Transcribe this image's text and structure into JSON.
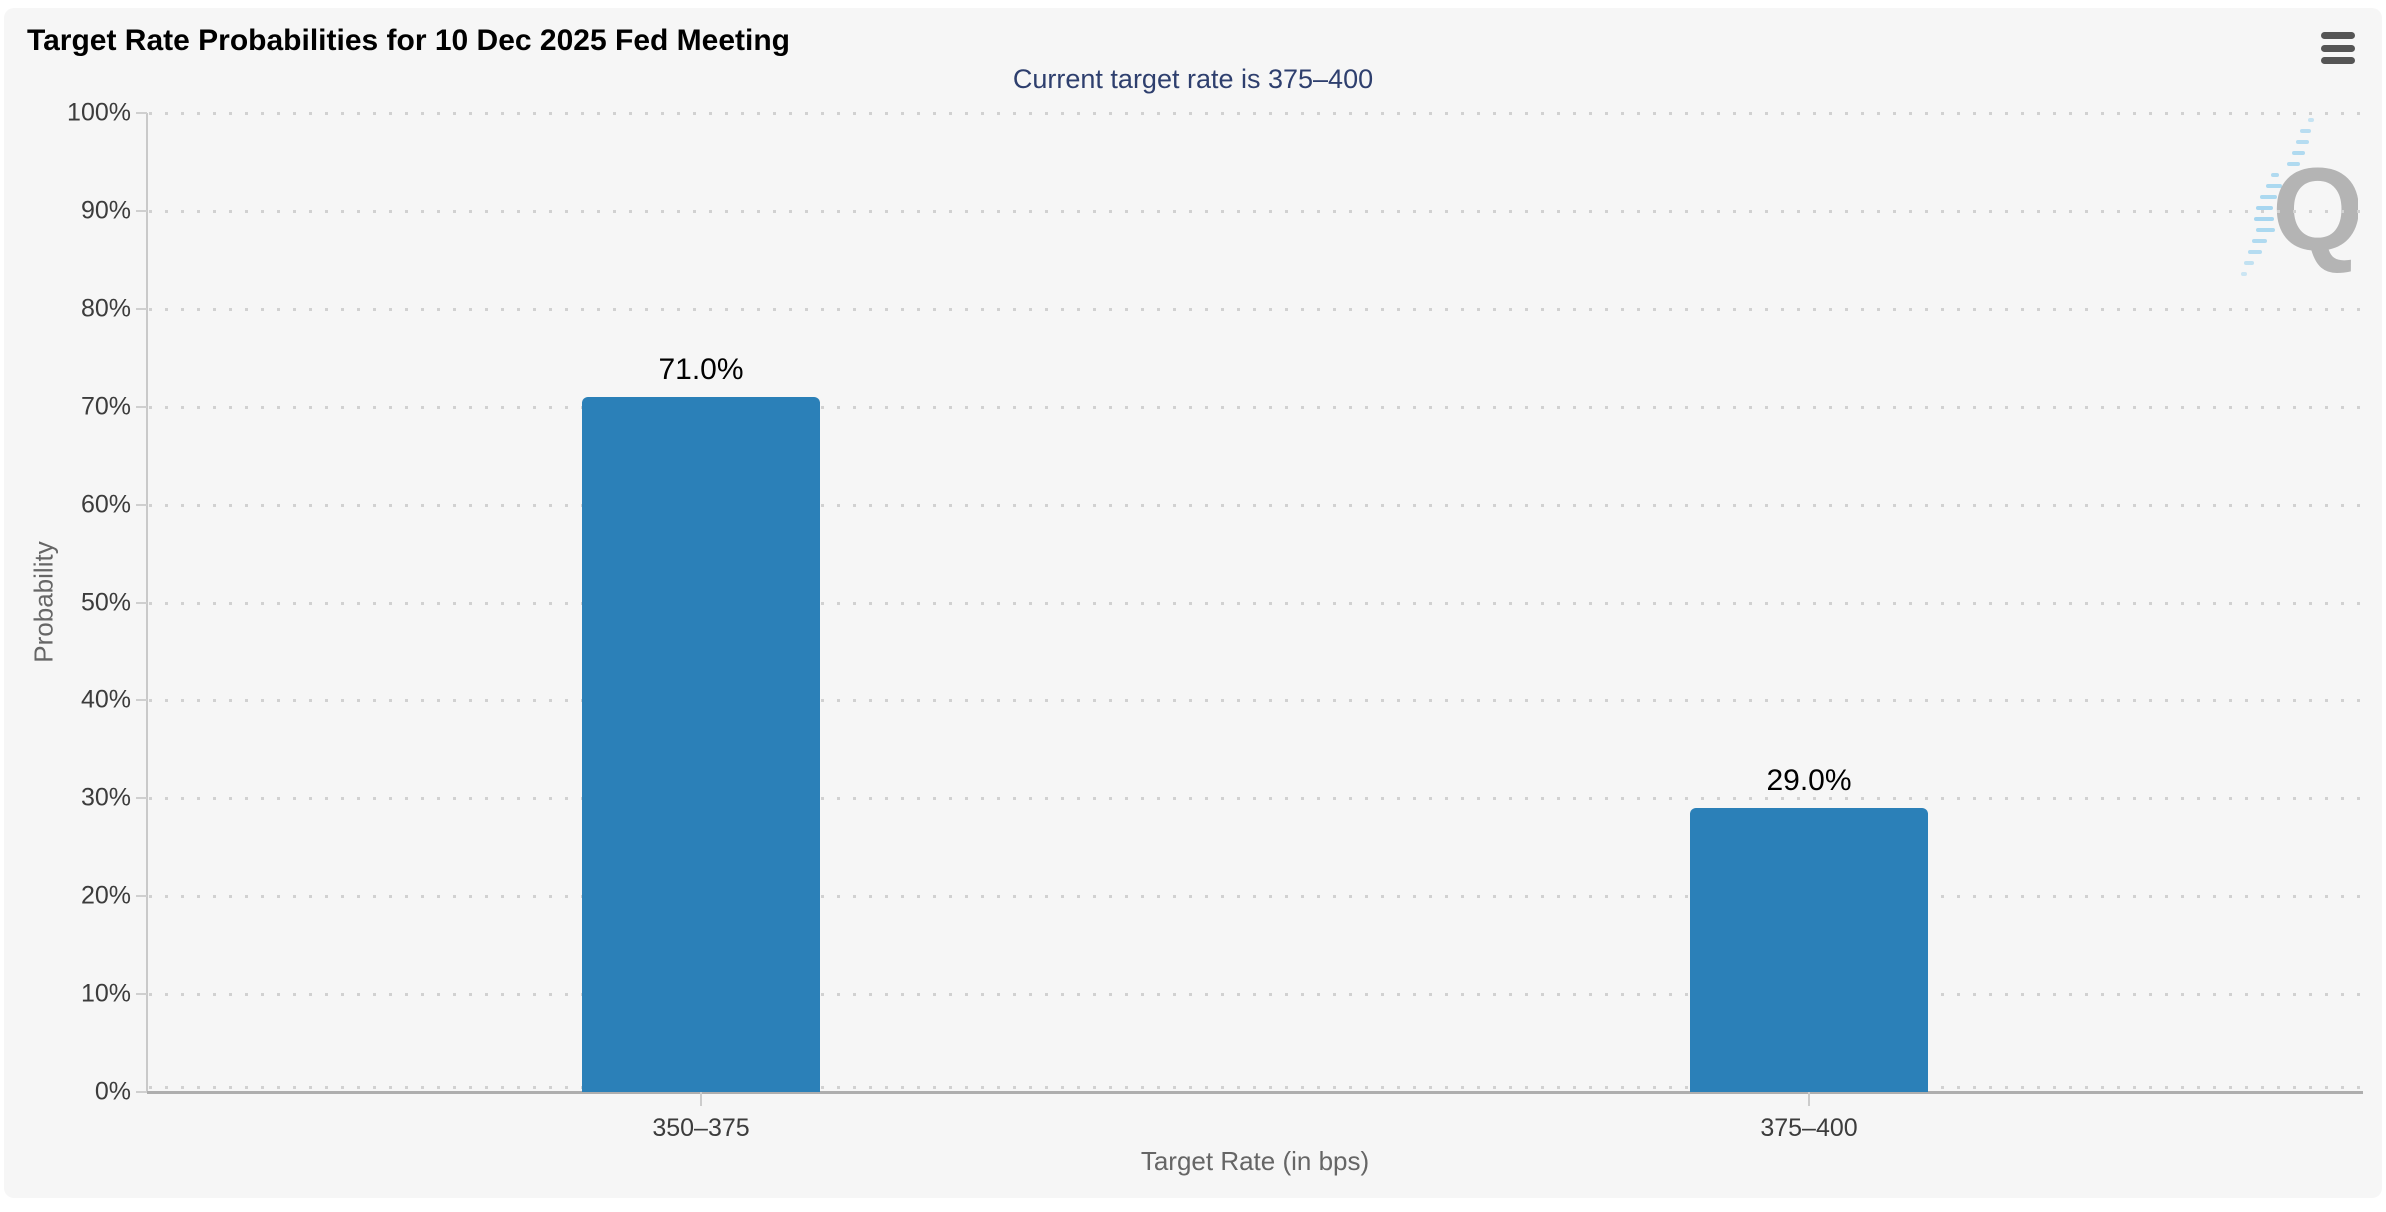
{
  "menu": {
    "icon": "hamburger-menu"
  },
  "watermark": {
    "letter": "Q"
  },
  "chart_data": {
    "type": "bar",
    "title": "Target Rate Probabilities for 10 Dec 2025 Fed Meeting",
    "subtitle": "Current target rate is 375–400",
    "categories": [
      "350–375",
      "375–400"
    ],
    "values": [
      71.0,
      29.0
    ],
    "value_labels": [
      "71.0%",
      "29.0%"
    ],
    "xlabel": "Target Rate (in bps)",
    "ylabel": "Probability",
    "ylim": [
      0,
      100
    ],
    "ytick_interval": 10,
    "ytick_suffix": "%",
    "grid": "dotted-horizontal",
    "legend": "none",
    "colors": {
      "bar": "#2b80b8",
      "title": "#000000",
      "subtitle": "#2e3f6e",
      "tick_label": "#3c3c3c",
      "axis_title": "#666666",
      "panel_background": "#f6f6f6"
    }
  }
}
